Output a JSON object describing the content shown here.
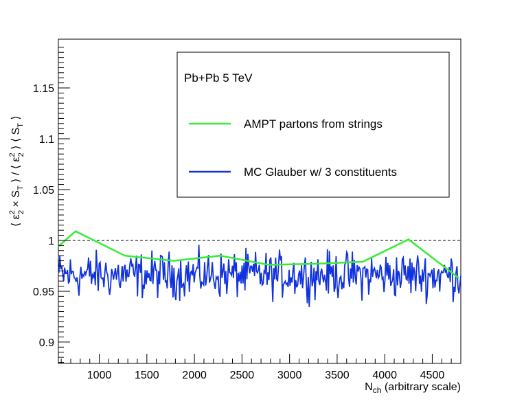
{
  "chart_data": {
    "type": "line",
    "title": "",
    "xlabel": {
      "main": "N",
      "sub": "ch",
      "rest": " (arbitrary scale)"
    },
    "ylabel": "⟨ ε₂² × S_T ⟩ / ⟨ ε₂² ⟩ ⟨ S_T ⟩",
    "xlim": [
      570,
      4800
    ],
    "ylim": [
      0.879,
      1.198
    ],
    "xticks": [
      1000,
      1500,
      2000,
      2500,
      3000,
      3500,
      4000,
      4500
    ],
    "xtick_labels": [
      "1000",
      "1500",
      "2000",
      "2500",
      "3000",
      "3500",
      "4000",
      "4500"
    ],
    "yticks": [
      0.9,
      0.95,
      1.0,
      1.05,
      1.1,
      1.15
    ],
    "ytick_labels": [
      "0.9",
      "0.95",
      "1",
      "1.05",
      "1.1",
      "1.15"
    ],
    "reference_line": {
      "y": 1.0,
      "style": "dashed"
    },
    "legend": {
      "header": "Pb+Pb 5 TeV",
      "placement": "top-right"
    },
    "series": [
      {
        "name": "AMPT partons from strings",
        "color": "#33ee33",
        "x": [
          570,
          750,
          1270,
          1780,
          2270,
          2780,
          3270,
          3770,
          4250,
          4780
        ],
        "y": [
          0.994,
          1.009,
          0.985,
          0.98,
          0.985,
          0.976,
          0.977,
          0.979,
          1.001,
          0.963
        ]
      },
      {
        "name": "MC Glauber w/ 3 constituents",
        "color": "#1133dd",
        "noisy": true,
        "x_start": 575,
        "x_end": 4800,
        "n_points": 420,
        "mean": 0.966,
        "spread": 0.017,
        "y_min": 0.925,
        "y_max": 1.0
      }
    ]
  }
}
